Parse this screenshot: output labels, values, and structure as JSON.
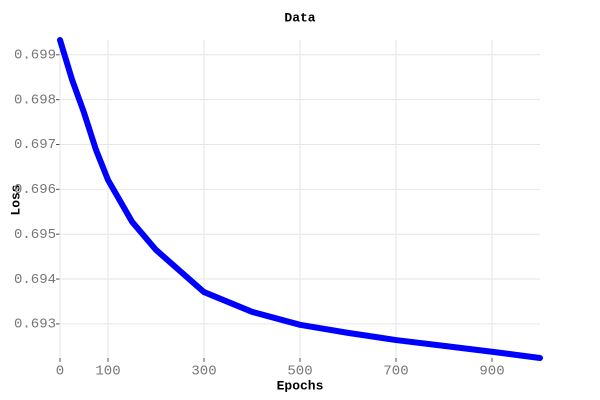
{
  "chart_data": {
    "type": "line",
    "title": "Data",
    "x_label": "Epochs",
    "y_label": "Loss",
    "x": [
      0,
      25,
      50,
      75,
      100,
      150,
      200,
      300,
      400,
      500,
      600,
      700,
      800,
      900,
      1000
    ],
    "series": [
      {
        "name": "Loss",
        "color": "#0000ff",
        "values": [
          0.69933,
          0.69845,
          0.69771,
          0.69688,
          0.69621,
          0.69528,
          0.69465,
          0.69371,
          0.69327,
          0.69298,
          0.6928,
          0.69264,
          0.69251,
          0.69238,
          0.69224
        ]
      }
    ],
    "xlim": [
      0,
      1000
    ],
    "xticks": [
      0,
      100,
      300,
      500,
      700,
      900
    ],
    "ylim": [
      0.69224,
      0.69933
    ],
    "yticks": [
      0.693,
      0.694,
      0.695,
      0.696,
      0.697,
      0.698,
      0.699
    ],
    "grid": true
  }
}
